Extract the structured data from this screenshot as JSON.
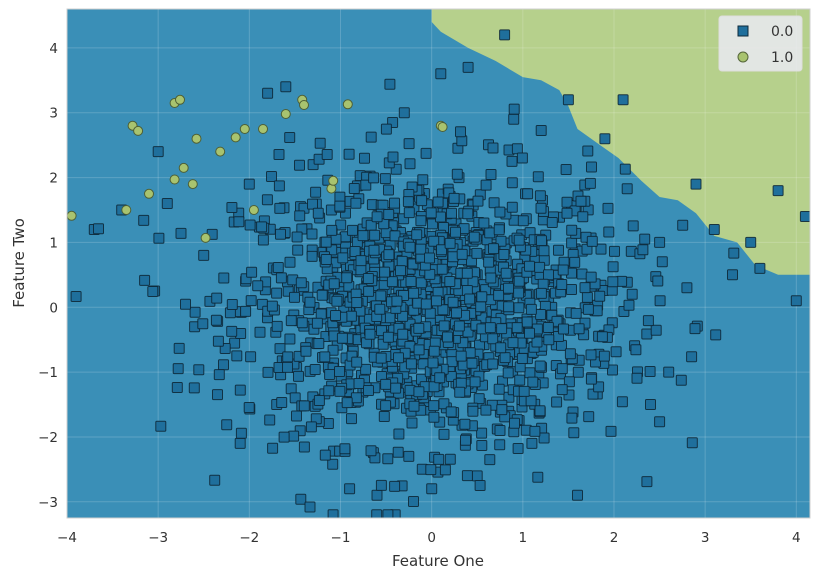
{
  "chart_data": {
    "type": "scatter",
    "title": "",
    "xlabel": "Feature One",
    "ylabel": "Feature Two",
    "xlim": [
      -4,
      4.15
    ],
    "ylim": [
      -3.25,
      4.6
    ],
    "xticks": [
      "−4",
      "−3",
      "−2",
      "−1",
      "0",
      "1",
      "2",
      "3",
      "4"
    ],
    "xtick_values": [
      -4,
      -3,
      -2,
      -1,
      0,
      1,
      2,
      3,
      4
    ],
    "yticks": [
      "−3",
      "−2",
      "−1",
      "0",
      "1",
      "2",
      "3",
      "4"
    ],
    "ytick_values": [
      -3,
      -2,
      -1,
      0,
      1,
      2,
      3,
      4
    ],
    "grid": true,
    "legend_position": "top-right",
    "background_region": "decision regions: class 0.0 (blue) covers most of the plane; class 1.0 (green) covers the upper-right corner",
    "series": [
      {
        "name": "0.0",
        "marker": "square",
        "color": "#1f6f9c",
        "region_color": "#3a8fb7",
        "approx_count": 1500,
        "distribution": "dense cloud centred near (0, 0), spread roughly x -3.8..4.1, y -3.2..4.2",
        "points_sample": [
          [
            -3.7,
            1.2
          ],
          [
            -3.4,
            1.5
          ],
          [
            -3.0,
            2.4
          ],
          [
            -2.9,
            1.6
          ],
          [
            -2.6,
            -0.3
          ],
          [
            -2.5,
            0.8
          ],
          [
            -2.1,
            -2.1
          ],
          [
            -2.0,
            1.9
          ],
          [
            -1.8,
            3.3
          ],
          [
            -1.6,
            3.4
          ],
          [
            -1.7,
            -1.5
          ],
          [
            -1.3,
            2.2
          ],
          [
            -1.1,
            1.5
          ],
          [
            -0.9,
            -2.8
          ],
          [
            -0.6,
            -2.9
          ],
          [
            -0.4,
            -3.2
          ],
          [
            -0.3,
            3.0
          ],
          [
            0.0,
            -2.8
          ],
          [
            0.1,
            3.6
          ],
          [
            0.3,
            2.0
          ],
          [
            0.4,
            3.7
          ],
          [
            0.5,
            -2.6
          ],
          [
            0.8,
            4.2
          ],
          [
            0.9,
            2.9
          ],
          [
            1.1,
            -2.1
          ],
          [
            1.5,
            3.2
          ],
          [
            1.6,
            -2.9
          ],
          [
            1.9,
            2.6
          ],
          [
            2.1,
            3.2
          ],
          [
            2.2,
            0.2
          ],
          [
            2.4,
            -1.5
          ],
          [
            2.5,
            1.0
          ],
          [
            2.6,
            -1.0
          ],
          [
            2.8,
            0.3
          ],
          [
            2.9,
            1.9
          ],
          [
            3.1,
            1.2
          ],
          [
            3.3,
            0.5
          ],
          [
            3.5,
            1.0
          ],
          [
            3.6,
            0.6
          ],
          [
            3.8,
            1.8
          ],
          [
            4.0,
            0.1
          ],
          [
            4.1,
            1.4
          ],
          [
            0.0,
            0.0
          ],
          [
            0.5,
            0.5
          ],
          [
            -0.5,
            -0.5
          ],
          [
            1.0,
            -0.5
          ],
          [
            -1.0,
            0.3
          ],
          [
            0.2,
            -1.0
          ]
        ]
      },
      {
        "name": "1.0",
        "marker": "circle",
        "color": "#a8c36f",
        "region_color": "#b6d08c",
        "approx_count": 30,
        "points": [
          [
            -3.95,
            1.41
          ],
          [
            -3.35,
            1.5
          ],
          [
            -3.28,
            2.8
          ],
          [
            -3.22,
            2.72
          ],
          [
            -3.1,
            1.75
          ],
          [
            -2.82,
            3.15
          ],
          [
            -2.76,
            3.2
          ],
          [
            -2.82,
            1.97
          ],
          [
            -2.72,
            2.15
          ],
          [
            -2.62,
            1.9
          ],
          [
            -2.58,
            2.6
          ],
          [
            -2.48,
            1.07
          ],
          [
            -2.32,
            2.4
          ],
          [
            -2.15,
            2.62
          ],
          [
            -2.05,
            2.75
          ],
          [
            -1.85,
            2.75
          ],
          [
            -1.95,
            1.5
          ],
          [
            -1.6,
            2.98
          ],
          [
            -1.42,
            3.2
          ],
          [
            -1.4,
            3.12
          ],
          [
            -1.1,
            1.83
          ],
          [
            -1.08,
            1.95
          ],
          [
            -0.92,
            3.13
          ],
          [
            0.1,
            2.8
          ],
          [
            0.12,
            2.78
          ]
        ]
      }
    ]
  }
}
